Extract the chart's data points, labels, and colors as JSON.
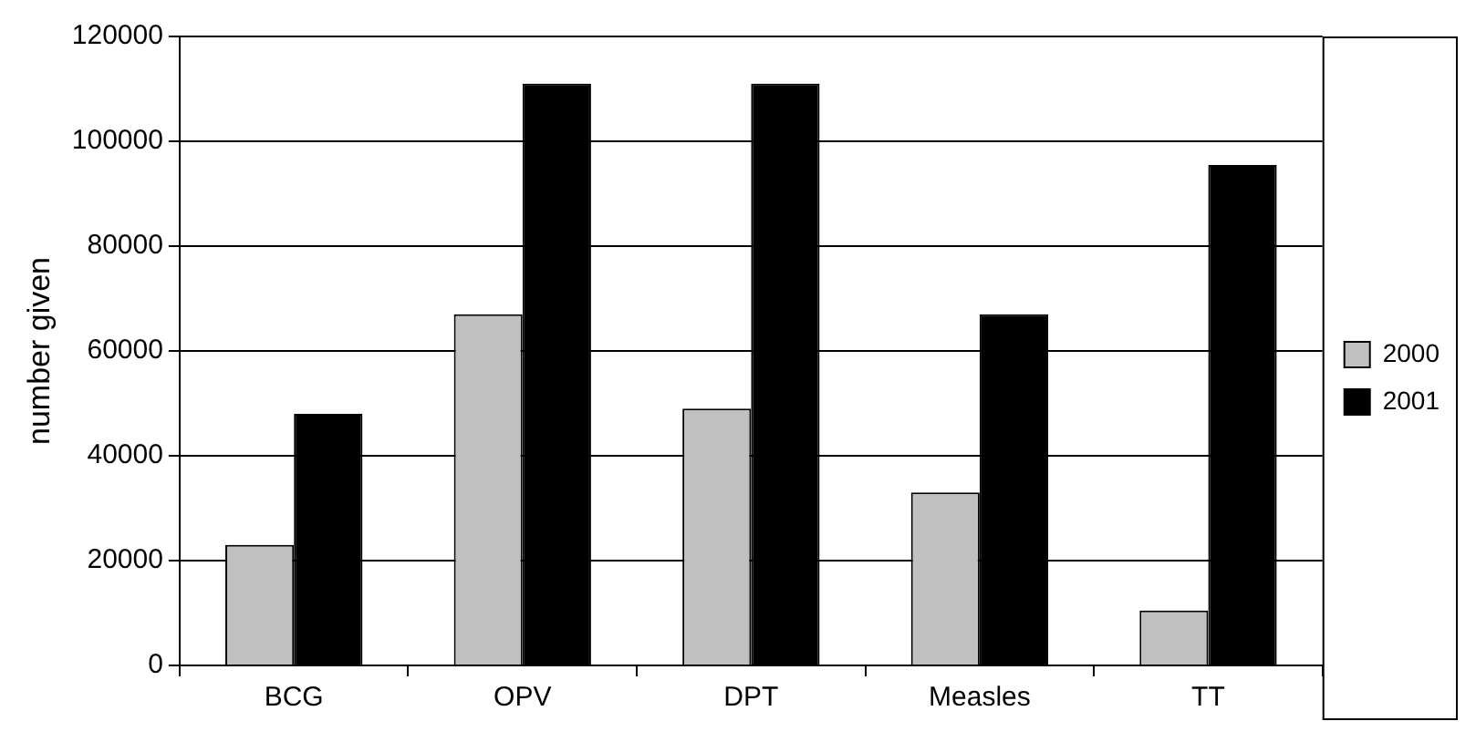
{
  "chart_data": {
    "type": "bar",
    "ylabel": "number given",
    "categories": [
      "BCG",
      "OPV",
      "DPT",
      "Measles",
      "TT"
    ],
    "series": [
      {
        "name": "2000",
        "color": "#c0c0c0",
        "values": [
          23000,
          67000,
          49000,
          33000,
          10500
        ]
      },
      {
        "name": "2001",
        "color": "#000000",
        "values": [
          48000,
          111000,
          111000,
          67000,
          95500
        ]
      }
    ],
    "ylim": [
      0,
      120000
    ],
    "yticks": [
      0,
      20000,
      40000,
      60000,
      80000,
      100000,
      120000
    ],
    "grid": "y",
    "legend": "right"
  }
}
